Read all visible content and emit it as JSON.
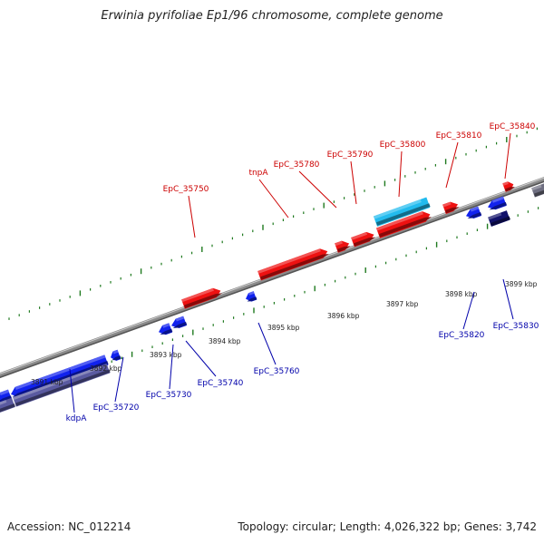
{
  "map": {
    "title": "Erwinia pyrifoliae Ep1/96 chromosome, complete genome",
    "accession": "Accession: NC_012214",
    "summary": "Topology: circular; Length: 4,026,322 bp; Genes: 3,742"
  },
  "colors": {
    "forward_gene": "#ee1111",
    "forward_rna": "#22bbee",
    "reverse_gene": "#1122ee",
    "reverse_dark": "#11116a",
    "reverse_pale": "#5a5aa0",
    "backbone": "#8a8a8a",
    "tick": "#1f7a1f",
    "forward_label": "#cc0000",
    "reverse_label": "#0000aa"
  },
  "scale_labels": [
    "3891 kbp",
    "3892 kbp",
    "3893 kbp",
    "3894 kbp",
    "3895 kbp",
    "3896 kbp",
    "3897 kbp",
    "3898 kbp",
    "3899 kbp"
  ],
  "forward_labels": [
    "EpC_35750",
    "tnpA",
    "EpC_35780",
    "EpC_35790",
    "EpC_35800",
    "EpC_35810",
    "EpC_35840"
  ],
  "reverse_labels": [
    "kdpA",
    "EpC_35720",
    "EpC_35730",
    "EpC_35740",
    "EpC_35760",
    "EpC_35820",
    "EpC_35830"
  ]
}
